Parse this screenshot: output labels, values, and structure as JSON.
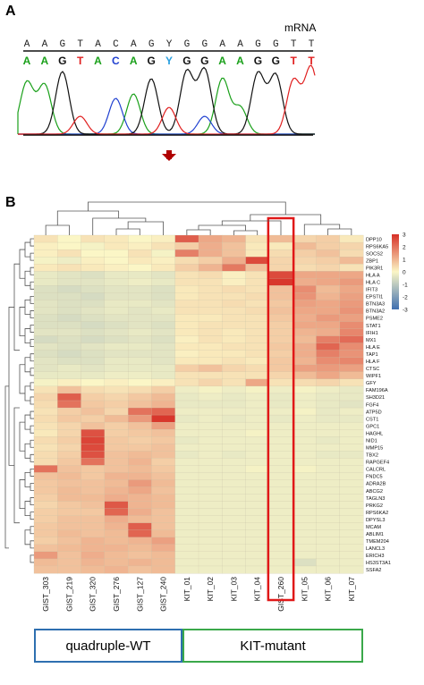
{
  "panel_a": {
    "label": "A",
    "track_label": "mRNA",
    "upper_bases": [
      "A",
      "A",
      "G",
      "T",
      "A",
      "C",
      "A",
      "G",
      "Y",
      "G",
      "G",
      "A",
      "A",
      "G",
      "G",
      "T",
      "T"
    ],
    "lower_bases": [
      "A",
      "A",
      "G",
      "T",
      "A",
      "C",
      "A",
      "G",
      "Y",
      "G",
      "G",
      "A",
      "A",
      "G",
      "G",
      "T",
      "T"
    ],
    "base_colors": {
      "A": "#1aa01a",
      "C": "#2040d0",
      "G": "#111111",
      "T": "#e02020",
      "Y": "#2aa0e0"
    },
    "arrow_color": "#b00000"
  },
  "panel_b": {
    "label": "B",
    "groups": {
      "wt_label": "quadruple-WT",
      "kit_label": "KIT-mutant"
    },
    "highlight_column": "GIST_260",
    "highlight_color": "#e01818"
  },
  "chart_data": {
    "type": "heatmap",
    "columns": [
      "GIST_303",
      "GIST_219",
      "GIST_320",
      "GIST_276",
      "GIST_127",
      "GIST_240",
      "KIT_01",
      "KIT_02",
      "KIT_03",
      "KIT_04",
      "GIST_260",
      "KIT_05",
      "KIT_06",
      "KIT_07"
    ],
    "rows": [
      "DPP10",
      "RPS6KA5",
      "SOCS2",
      "ZBP1",
      "PIK3R1",
      "HLA A",
      "HLA C",
      "IFIT3",
      "EPSTI1",
      "BTN3A3",
      "BTN3A2",
      "PSME2",
      "STAT1",
      "IFIH1",
      "MX1",
      "HLA E",
      "TAP1",
      "HLA F",
      "CTSC",
      "WIPF1",
      "GFY",
      "FAM196A",
      "SH3D21",
      "FGF4",
      "ATP5D",
      "CST1",
      "GPC1",
      "HAGHL",
      "NID1",
      "MMP15",
      "TBX2",
      "RAPGEF4",
      "CALCRL",
      "FNDC5",
      "ADRA2B",
      "ABCG2",
      "TAGLN3",
      "PRKG2",
      "RPS6KA2",
      "DPYSL3",
      "MCAM",
      "ABLIM1",
      "TMEM204",
      "LANCL3",
      "ERICH3",
      "HS3ST3A1",
      "SSFA2"
    ],
    "values": [
      [
        0.3,
        0.0,
        0.3,
        0.2,
        0.0,
        0.1,
        2.3,
        1.2,
        1.0,
        0.3,
        0.9,
        0.5,
        0.6,
        0.2
      ],
      [
        0.1,
        0.0,
        -0.1,
        0.2,
        0.1,
        0.3,
        0.6,
        1.1,
        0.8,
        0.2,
        0.2,
        0.9,
        0.6,
        0.5
      ],
      [
        0.1,
        0.3,
        0.0,
        0.0,
        0.3,
        -0.1,
        1.8,
        1.1,
        0.8,
        0.2,
        0.4,
        0.6,
        0.8,
        0.4
      ],
      [
        -0.1,
        -0.2,
        0.1,
        0.0,
        0.2,
        0.1,
        0.4,
        0.6,
        1.1,
        2.6,
        0.5,
        0.5,
        0.6,
        0.9
      ],
      [
        0.2,
        0.3,
        0.2,
        0.1,
        0.0,
        0.2,
        0.6,
        1.0,
        1.9,
        0.8,
        0.5,
        0.4,
        0.5,
        0.3
      ],
      [
        -0.3,
        -0.4,
        -0.5,
        -0.3,
        -0.3,
        -0.4,
        0.3,
        0.4,
        0.1,
        0.3,
        2.6,
        1.2,
        1.2,
        1.2
      ],
      [
        -0.3,
        -0.4,
        -0.4,
        -0.3,
        -0.2,
        -0.3,
        0.3,
        0.3,
        0.1,
        0.3,
        2.9,
        1.1,
        1.2,
        1.4
      ],
      [
        -0.5,
        -0.6,
        -0.5,
        -0.4,
        -0.4,
        -0.5,
        0.2,
        0.3,
        0.4,
        0.3,
        0.8,
        1.6,
        0.9,
        1.2
      ],
      [
        -0.5,
        -0.5,
        -0.6,
        -0.4,
        -0.4,
        -0.5,
        0.2,
        0.3,
        0.3,
        0.4,
        0.8,
        1.5,
        1.0,
        1.3
      ],
      [
        -0.4,
        -0.5,
        -0.5,
        -0.3,
        -0.3,
        -0.4,
        0.3,
        0.3,
        0.4,
        0.3,
        0.7,
        1.3,
        1.2,
        1.4
      ],
      [
        -0.4,
        -0.5,
        -0.4,
        -0.3,
        -0.4,
        -0.3,
        0.3,
        0.3,
        0.3,
        0.4,
        0.8,
        1.2,
        1.2,
        1.5
      ],
      [
        -0.5,
        -0.6,
        -0.5,
        -0.4,
        -0.4,
        -0.4,
        0.2,
        0.2,
        0.3,
        0.3,
        0.7,
        1.1,
        1.4,
        1.3
      ],
      [
        -0.5,
        -0.5,
        -0.6,
        -0.5,
        -0.4,
        -0.5,
        0.2,
        0.3,
        0.3,
        0.3,
        0.6,
        1.2,
        1.2,
        1.6
      ],
      [
        -0.4,
        -0.4,
        -0.5,
        -0.4,
        -0.3,
        -0.4,
        0.2,
        0.3,
        0.2,
        0.3,
        0.6,
        1.0,
        1.1,
        1.7
      ],
      [
        -0.6,
        -0.5,
        -0.6,
        -0.5,
        -0.4,
        -0.5,
        0.1,
        0.3,
        0.2,
        0.3,
        0.6,
        0.9,
        1.8,
        2.1
      ],
      [
        -0.4,
        -0.5,
        -0.4,
        -0.3,
        -0.3,
        -0.4,
        0.2,
        0.2,
        0.3,
        0.3,
        0.7,
        1.1,
        2.2,
        1.6
      ],
      [
        -0.5,
        -0.6,
        -0.5,
        -0.4,
        -0.4,
        -0.4,
        0.1,
        0.2,
        0.2,
        0.3,
        0.6,
        1.1,
        1.8,
        1.5
      ],
      [
        -0.4,
        -0.5,
        -0.5,
        -0.3,
        -0.3,
        -0.4,
        0.2,
        0.2,
        0.3,
        0.2,
        0.7,
        1.0,
        1.6,
        1.7
      ],
      [
        -0.4,
        -0.3,
        -0.4,
        -0.3,
        -0.3,
        -0.3,
        0.6,
        0.8,
        0.5,
        0.4,
        0.7,
        1.3,
        1.4,
        1.3
      ],
      [
        -0.3,
        -0.3,
        -0.3,
        -0.2,
        -0.2,
        -0.3,
        0.3,
        0.3,
        0.3,
        0.3,
        0.5,
        0.9,
        1.2,
        0.9
      ],
      [
        -0.1,
        0.1,
        0.0,
        0.1,
        0.0,
        0.1,
        0.3,
        0.5,
        0.3,
        1.2,
        0.3,
        0.4,
        0.5,
        0.3
      ],
      [
        0.3,
        0.8,
        0.4,
        0.3,
        0.4,
        0.6,
        -0.2,
        -0.1,
        -0.2,
        -0.1,
        -0.2,
        -0.1,
        -0.2,
        -0.3
      ],
      [
        0.5,
        2.3,
        0.6,
        0.5,
        0.7,
        0.9,
        -0.3,
        -0.2,
        -0.3,
        -0.2,
        -0.3,
        -0.2,
        -0.3,
        -0.3
      ],
      [
        0.4,
        2.0,
        0.7,
        0.6,
        0.8,
        1.0,
        -0.3,
        -0.3,
        -0.3,
        -0.2,
        -0.3,
        -0.2,
        -0.3,
        -0.4
      ],
      [
        0.3,
        0.6,
        0.8,
        0.5,
        2.0,
        2.2,
        -0.2,
        -0.2,
        -0.2,
        -0.2,
        -0.2,
        -0.1,
        -0.3,
        -0.2
      ],
      [
        0.4,
        0.7,
        0.6,
        0.9,
        1.4,
        2.9,
        -0.3,
        -0.2,
        -0.3,
        -0.2,
        -0.3,
        -0.2,
        -0.3,
        -0.3
      ],
      [
        0.3,
        0.5,
        0.8,
        0.6,
        0.8,
        1.3,
        -0.2,
        -0.2,
        -0.2,
        -0.2,
        -0.2,
        -0.2,
        -0.2,
        -0.2
      ],
      [
        0.2,
        0.5,
        2.5,
        0.6,
        0.7,
        0.8,
        -0.2,
        -0.2,
        -0.2,
        -0.1,
        -0.2,
        -0.2,
        -0.2,
        -0.2
      ],
      [
        0.4,
        0.6,
        2.7,
        0.7,
        0.6,
        0.7,
        -0.3,
        -0.2,
        -0.2,
        -0.2,
        -0.2,
        -0.2,
        -0.3,
        -0.2
      ],
      [
        0.3,
        0.5,
        2.6,
        0.7,
        0.7,
        0.8,
        -0.2,
        -0.2,
        -0.2,
        -0.2,
        -0.2,
        -0.2,
        -0.2,
        -0.2
      ],
      [
        0.4,
        0.6,
        2.5,
        0.8,
        0.9,
        0.8,
        -0.3,
        -0.2,
        -0.3,
        -0.2,
        -0.2,
        -0.2,
        -0.3,
        -0.3
      ],
      [
        0.4,
        0.7,
        2.0,
        0.8,
        1.0,
        0.6,
        -0.2,
        -0.2,
        -0.2,
        -0.2,
        -0.2,
        -0.2,
        -0.2,
        -0.2
      ],
      [
        2.0,
        0.8,
        0.7,
        0.8,
        0.9,
        0.7,
        -0.2,
        -0.2,
        -0.2,
        -0.1,
        -0.2,
        -0.1,
        -0.2,
        -0.2
      ],
      [
        0.8,
        0.9,
        0.7,
        1.0,
        1.0,
        0.8,
        -0.2,
        -0.2,
        -0.2,
        -0.2,
        -0.2,
        -0.2,
        -0.2,
        -0.2
      ],
      [
        0.7,
        0.8,
        0.8,
        0.9,
        1.4,
        0.9,
        -0.2,
        -0.2,
        -0.2,
        -0.2,
        -0.2,
        -0.2,
        -0.2,
        -0.2
      ],
      [
        0.7,
        0.9,
        0.8,
        1.0,
        1.2,
        0.8,
        -0.2,
        -0.2,
        -0.2,
        -0.2,
        -0.2,
        -0.2,
        -0.2,
        -0.2
      ],
      [
        0.6,
        0.9,
        0.9,
        1.1,
        1.0,
        0.9,
        -0.2,
        -0.2,
        -0.2,
        -0.2,
        -0.2,
        -0.2,
        -0.2,
        -0.2
      ],
      [
        0.5,
        0.7,
        0.8,
        2.4,
        1.0,
        0.9,
        -0.2,
        -0.2,
        -0.2,
        -0.2,
        -0.2,
        -0.2,
        -0.2,
        -0.2
      ],
      [
        0.6,
        0.7,
        0.7,
        2.2,
        1.1,
        0.8,
        -0.2,
        -0.2,
        -0.2,
        -0.2,
        -0.2,
        -0.2,
        -0.2,
        -0.2
      ],
      [
        0.6,
        0.8,
        0.8,
        1.1,
        0.9,
        0.8,
        -0.2,
        -0.2,
        -0.2,
        -0.2,
        -0.2,
        -0.2,
        -0.2,
        -0.2
      ],
      [
        0.7,
        0.8,
        0.8,
        1.0,
        2.3,
        0.8,
        -0.2,
        -0.2,
        -0.2,
        -0.2,
        -0.2,
        -0.2,
        -0.2,
        -0.2
      ],
      [
        0.7,
        0.9,
        0.8,
        0.9,
        2.2,
        0.9,
        -0.2,
        -0.2,
        -0.2,
        -0.2,
        -0.2,
        -0.2,
        -0.2,
        -0.2
      ],
      [
        0.6,
        0.8,
        1.0,
        0.9,
        1.0,
        1.3,
        -0.2,
        -0.2,
        -0.2,
        -0.2,
        -0.2,
        -0.2,
        -0.2,
        -0.2
      ],
      [
        0.8,
        0.9,
        1.0,
        1.0,
        0.9,
        1.1,
        -0.2,
        -0.2,
        -0.2,
        -0.2,
        -0.2,
        -0.2,
        -0.2,
        -0.2
      ],
      [
        1.4,
        0.8,
        1.1,
        0.9,
        0.8,
        0.9,
        -0.2,
        -0.2,
        -0.2,
        -0.2,
        -0.2,
        -0.2,
        -0.2,
        -0.2
      ],
      [
        0.9,
        0.8,
        1.0,
        0.9,
        1.0,
        0.9,
        -0.2,
        -0.2,
        -0.2,
        -0.2,
        -0.2,
        -0.5,
        -0.2,
        -0.2
      ],
      [
        0.8,
        0.8,
        0.9,
        1.0,
        0.8,
        0.9,
        -0.2,
        -0.2,
        -0.2,
        -0.2,
        -0.2,
        -0.2,
        -0.2,
        -0.2
      ]
    ],
    "color_scale": {
      "min": -3,
      "max": 3,
      "ticks": [
        "3",
        "2",
        "1",
        "0",
        "-1",
        "-2",
        "-3"
      ],
      "low": "#3f6fb0",
      "mid": "#fbf6c6",
      "high": "#d73027"
    },
    "title": "",
    "xlabel": "",
    "ylabel": ""
  }
}
